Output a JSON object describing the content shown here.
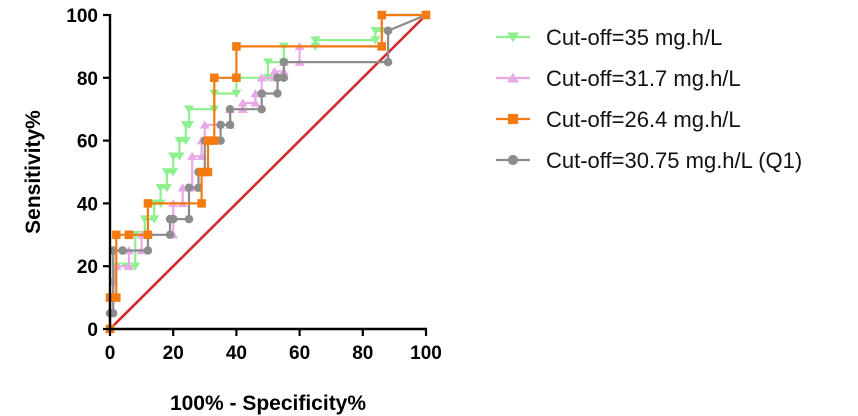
{
  "chart_data": {
    "type": "line",
    "title": "",
    "xlabel": "100% - Specificity%",
    "ylabel": "Sensitivity%",
    "xlim": [
      0,
      100
    ],
    "ylim": [
      0,
      100
    ],
    "xticks": [
      0,
      20,
      40,
      60,
      80,
      100
    ],
    "yticks": [
      0,
      20,
      40,
      60,
      80,
      100
    ],
    "legend_position": "right",
    "reference_line": {
      "x": [
        0,
        100
      ],
      "y": [
        0,
        100
      ],
      "color": "#d42a2a"
    },
    "series": [
      {
        "name": "Cut-off=35 mg.h/L",
        "color": "#8ef08e",
        "marker": "triangle-down",
        "x": [
          0,
          0,
          1,
          1,
          2,
          5,
          8,
          8,
          11,
          11,
          14,
          14,
          16,
          16,
          18,
          18,
          20,
          20,
          22,
          22,
          24,
          24,
          25,
          25,
          33,
          33,
          40,
          40,
          50,
          50,
          55,
          55,
          65,
          65,
          84,
          84,
          86,
          86,
          100
        ],
        "y": [
          0,
          10,
          10,
          15,
          20,
          20,
          20,
          30,
          30,
          35,
          35,
          40,
          40,
          45,
          45,
          50,
          50,
          55,
          55,
          60,
          60,
          65,
          65,
          70,
          70,
          75,
          75,
          80,
          80,
          85,
          85,
          90,
          90,
          92,
          92,
          95,
          95,
          100,
          100
        ]
      },
      {
        "name": "Cut-off=31.7 mg.h/L",
        "color": "#eaa9e6",
        "marker": "triangle-up",
        "x": [
          0,
          0,
          1,
          1,
          2,
          6,
          6,
          10,
          10,
          20,
          20,
          23,
          23,
          26,
          26,
          29,
          29,
          30,
          30,
          38,
          38,
          42,
          42,
          46,
          46,
          48,
          48,
          52,
          52,
          55,
          55,
          60,
          60,
          86,
          86,
          100
        ],
        "y": [
          0,
          10,
          10,
          15,
          20,
          20,
          25,
          25,
          30,
          30,
          40,
          40,
          45,
          45,
          55,
          55,
          60,
          60,
          65,
          65,
          70,
          70,
          72,
          72,
          75,
          75,
          80,
          80,
          82,
          82,
          85,
          85,
          90,
          90,
          100,
          100
        ]
      },
      {
        "name": "Cut-off=26.4 mg.h/L",
        "color": "#f47a12",
        "marker": "square",
        "x": [
          0,
          0,
          2,
          2,
          6,
          6,
          12,
          12,
          29,
          29,
          31,
          31,
          33,
          33,
          40,
          40,
          86,
          86,
          100
        ],
        "y": [
          0,
          10,
          10,
          30,
          30,
          30,
          30,
          40,
          40,
          50,
          50,
          60,
          60,
          80,
          80,
          90,
          90,
          100,
          100
        ]
      },
      {
        "name": "Cut-off=30.75 mg.h/L (Q1)",
        "color": "#8c8c8c",
        "marker": "circle",
        "x": [
          0,
          0,
          1,
          1,
          4,
          4,
          12,
          12,
          19,
          19,
          20,
          20,
          25,
          25,
          28,
          28,
          30,
          30,
          35,
          35,
          38,
          38,
          48,
          48,
          53,
          53,
          55,
          55,
          88,
          88,
          100
        ],
        "y": [
          0,
          5,
          5,
          25,
          25,
          25,
          25,
          30,
          30,
          35,
          35,
          35,
          35,
          45,
          45,
          50,
          50,
          60,
          60,
          65,
          65,
          70,
          70,
          75,
          75,
          80,
          80,
          85,
          85,
          95,
          100
        ]
      }
    ]
  }
}
